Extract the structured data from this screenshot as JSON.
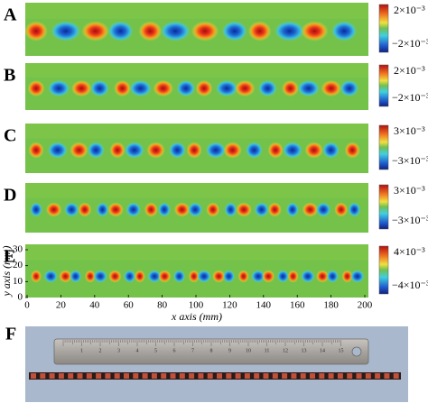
{
  "panels": [
    {
      "label": "A",
      "colorbar": {
        "max": "2×10⁻³",
        "min": "−2×10⁻³"
      }
    },
    {
      "label": "B",
      "colorbar": {
        "max": "2×10⁻³",
        "min": "−2×10⁻³"
      }
    },
    {
      "label": "C",
      "colorbar": {
        "max": "3×10⁻³",
        "min": "−3×10⁻³"
      }
    },
    {
      "label": "D",
      "colorbar": {
        "max": "3×10⁻³",
        "min": "−3×10⁻³"
      }
    },
    {
      "label": "E",
      "colorbar": {
        "max": "4×10⁻³",
        "min": "−4×10⁻³"
      }
    }
  ],
  "panel_e_axes": {
    "x_label": "x axis (mm)",
    "y_label": "y axis (mm)",
    "xlim": [
      0,
      200
    ],
    "ylim": [
      0,
      30
    ],
    "xticks": [
      0,
      20,
      40,
      60,
      80,
      100,
      120,
      140,
      160,
      180,
      200
    ],
    "yticks": [
      0,
      10,
      20,
      30
    ]
  },
  "photo": {
    "label": "F",
    "ruler_numbers": [
      1,
      2,
      3,
      4,
      5,
      6,
      7,
      8,
      9,
      10,
      11,
      12,
      13,
      14,
      15
    ]
  }
}
